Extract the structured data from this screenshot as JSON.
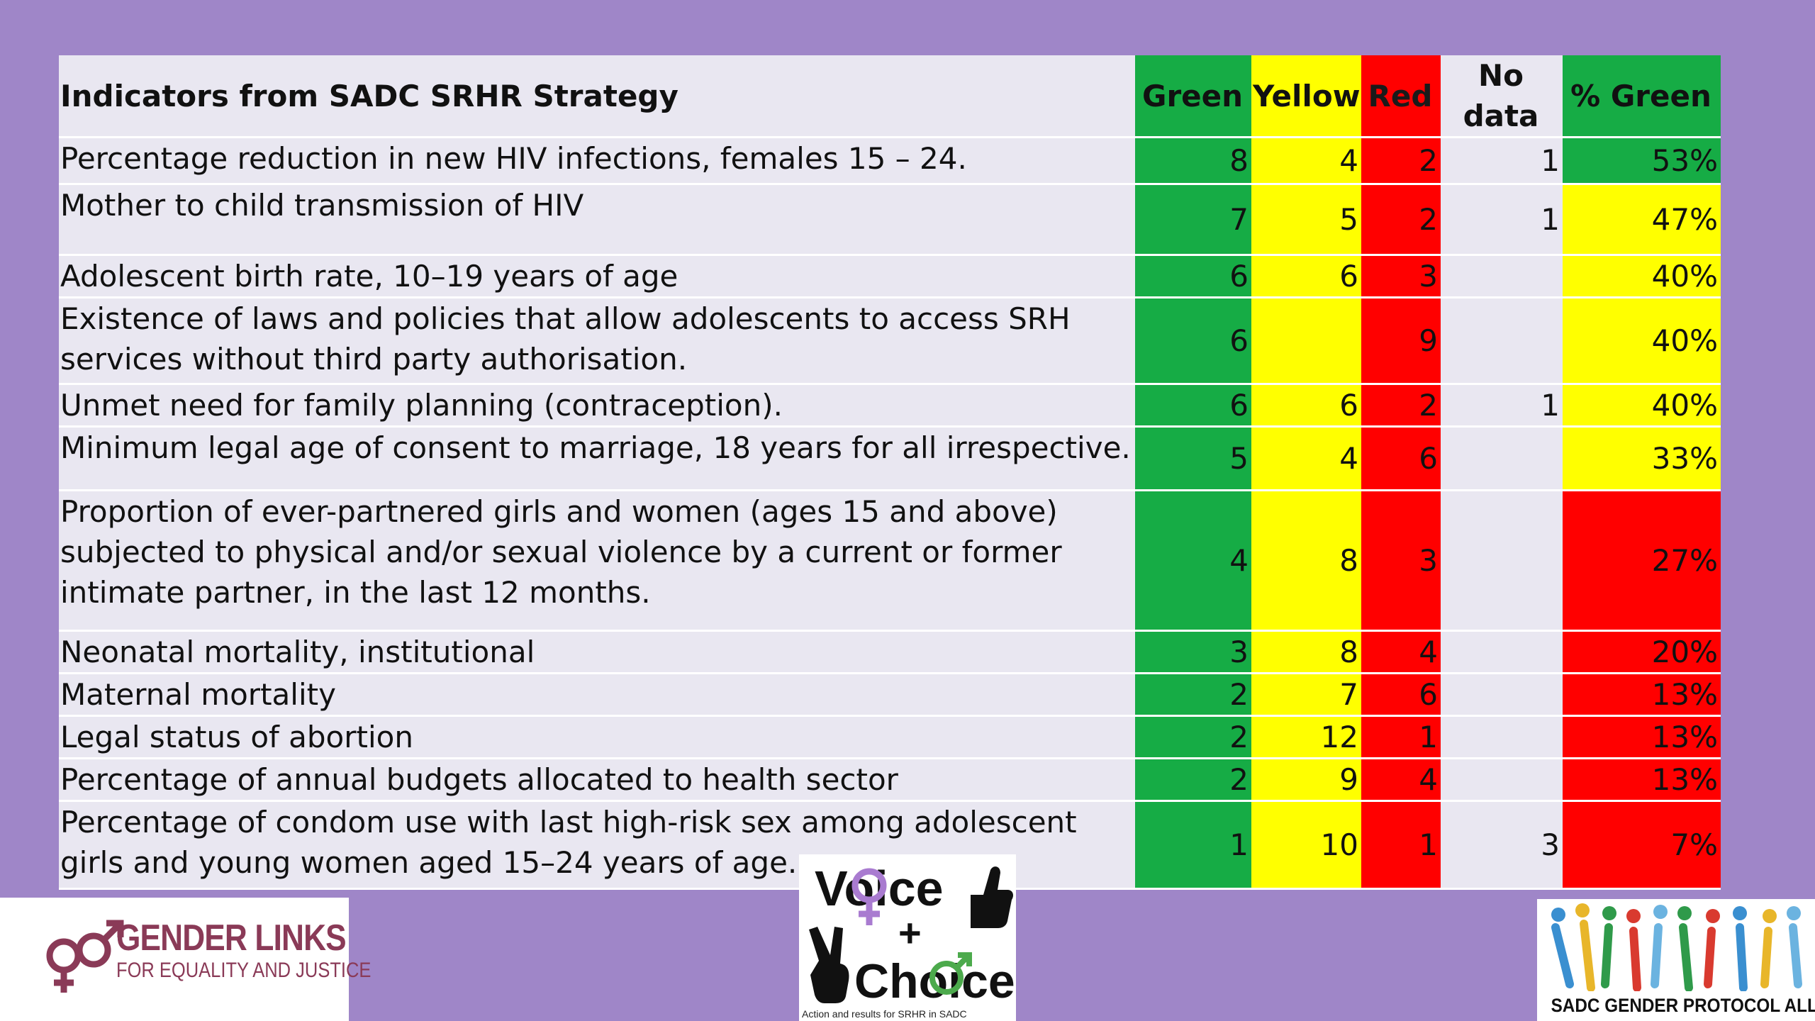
{
  "table": {
    "headers": {
      "indicator": "Indicators from SADC SRHR Strategy",
      "green": "Green",
      "yellow": "Yellow",
      "red": "Red",
      "nodata": "No data",
      "pct": "% Green"
    },
    "rows": [
      {
        "indicator": "Percentage reduction in new HIV infections, females 15 – 24.",
        "green": "8",
        "yellow": "4",
        "red": "2",
        "nodata": "1",
        "pct": "53%",
        "pct_status": "green"
      },
      {
        "indicator": "Mother to child transmission of HIV",
        "green": "7",
        "yellow": "5",
        "red": "2",
        "nodata": "1",
        "pct": "47%",
        "pct_status": "yellow"
      },
      {
        "indicator": "Adolescent birth rate, 10–19 years of age",
        "green": "6",
        "yellow": "6",
        "red": "3",
        "nodata": "",
        "pct": "40%",
        "pct_status": "yellow"
      },
      {
        "indicator": "Existence of laws and policies that allow adolescents to access SRH services without third party authorisation.",
        "green": "6",
        "yellow": "",
        "red": "9",
        "nodata": "",
        "pct": "40%",
        "pct_status": "yellow"
      },
      {
        "indicator": "Unmet need for family planning (contraception).",
        "green": "6",
        "yellow": "6",
        "red": "2",
        "nodata": "1",
        "pct": "40%",
        "pct_status": "yellow"
      },
      {
        "indicator": "Minimum legal age of consent to marriage, 18 years for all irrespective.",
        "green": "5",
        "yellow": "4",
        "red": "6",
        "nodata": "",
        "pct": "33%",
        "pct_status": "yellow"
      },
      {
        "indicator": "Proportion of ever-partnered girls and women (ages 15 and above) subjected to physical and/or sexual violence by a current or former intimate partner, in the last 12 months.",
        "green": "4",
        "yellow": "8",
        "red": "3",
        "nodata": "",
        "pct": "27%",
        "pct_status": "red"
      },
      {
        "indicator": "Neonatal mortality, institutional",
        "green": "3",
        "yellow": "8",
        "red": "4",
        "nodata": "",
        "pct": "20%",
        "pct_status": "red"
      },
      {
        "indicator": "Maternal mortality",
        "green": "2",
        "yellow": "7",
        "red": "6",
        "nodata": "",
        "pct": "13%",
        "pct_status": "red"
      },
      {
        "indicator": "Legal status of abortion",
        "green": "2",
        "yellow": "12",
        "red": "1",
        "nodata": "",
        "pct": "13%",
        "pct_status": "red"
      },
      {
        "indicator": "Percentage of annual budgets allocated to health sector",
        "green": "2",
        "yellow": "9",
        "red": "4",
        "nodata": "",
        "pct": "13%",
        "pct_status": "red"
      },
      {
        "indicator": "Percentage of condom use with last high-risk sex among adolescent girls and young women aged 15–24 years of age.",
        "green": "1",
        "yellow": "10",
        "red": "1",
        "nodata": "3",
        "pct": "7%",
        "pct_status": "red"
      }
    ]
  },
  "colors": {
    "background": "#9f86c8",
    "green": "#16ac45",
    "yellow": "#ffff00",
    "red": "#ff0000",
    "row_bg": "#e9e7f1"
  },
  "logos": {
    "gender_links": {
      "name": "GENDER LINKS",
      "tagline": "FOR EQUALITY AND JUSTICE",
      "icon": "gender-symbols-icon"
    },
    "voice_choice": {
      "word1": "Voice",
      "plus": "+",
      "word2": "Choice",
      "tagline": "Action and results for SRHR in SADC",
      "icons": [
        "thumbs-up-icon",
        "peace-hand-icon",
        "female-symbol-icon",
        "male-symbol-icon"
      ]
    },
    "sadc_alliance": {
      "caption": "SADC GENDER PROTOCOL ALLIANCE",
      "icon": "people-figures-icon"
    }
  }
}
